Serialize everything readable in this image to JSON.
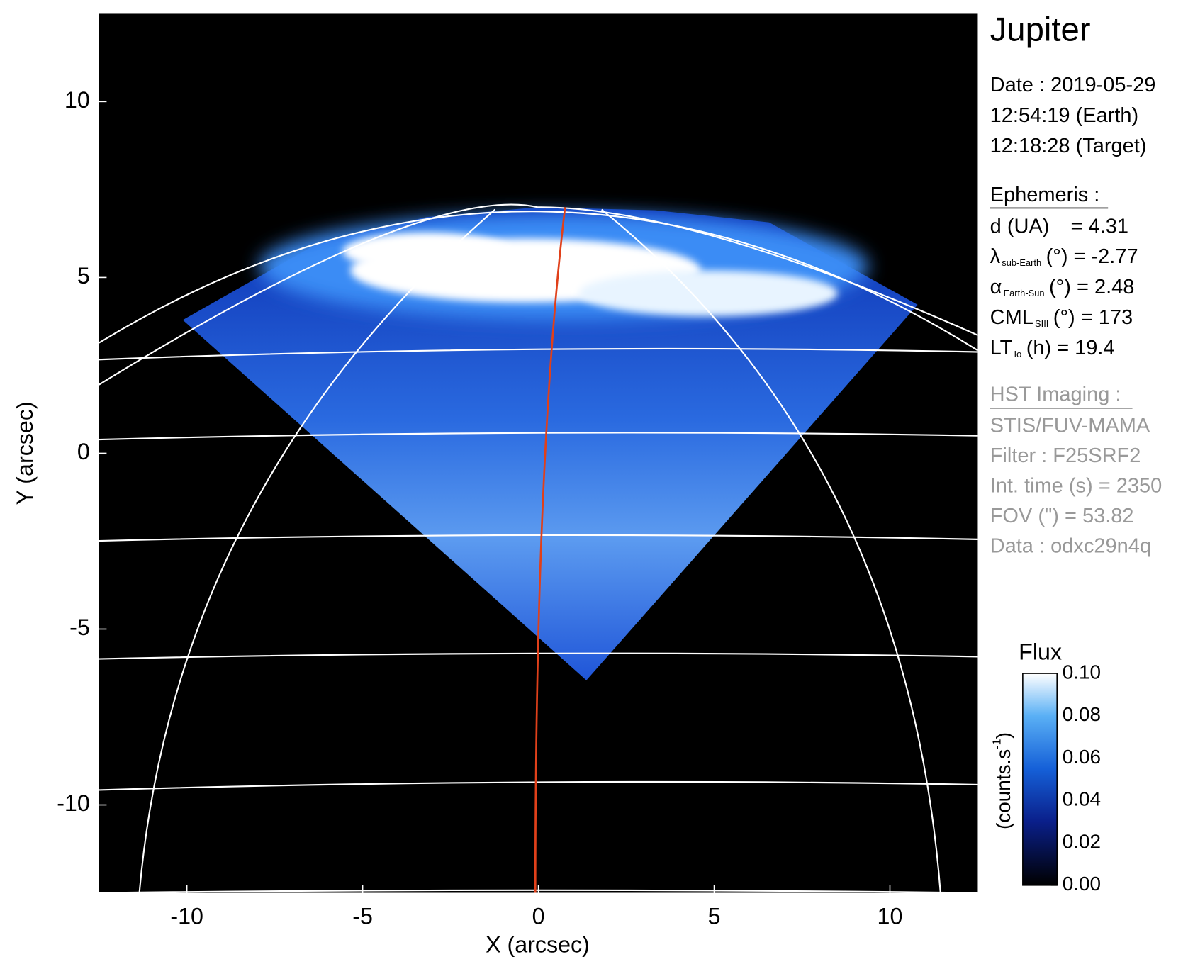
{
  "chart_data": {
    "type": "image",
    "xlabel": "X (arcsec)",
    "ylabel": "Y (arcsec)",
    "xlim": [
      -12.5,
      12.5
    ],
    "ylim": [
      -12.5,
      12.5
    ],
    "xticks": [
      -10,
      -5,
      0,
      5,
      10
    ],
    "yticks": [
      -10,
      -5,
      0,
      5,
      10
    ],
    "colorbar": {
      "title": "Flux",
      "label": "(counts.s",
      "label_sup": "-1",
      "label_end": ")",
      "lim": [
        0,
        0.1
      ],
      "ticks": [
        {
          "value": 0,
          "label": "0.00"
        },
        0.02,
        0.04,
        0.06,
        0.08,
        {
          "value": 0.1,
          "label": "0.10"
        }
      ]
    }
  },
  "info": {
    "title": "Jupiter",
    "date": [
      "Date : 2019-05-29",
      "12:54:19 (Earth)",
      "12:18:28 (Target)"
    ],
    "ephemeris": {
      "heading": "Ephemeris :",
      "items": [
        {
          "name": "d (UA)",
          "rest": "= 4.31"
        },
        {
          "name": "λ",
          "sub": "sub-Earth",
          "rest": "(°) = -2.77"
        },
        {
          "name": "α",
          "sub": "Earth-Sun",
          "rest": "(°) = 2.48"
        },
        {
          "name": "CML",
          "sub": "SIII",
          "rest": "(°) = 173"
        },
        {
          "name": "LT",
          "sub": "Io",
          "rest": "(h) = 19.4"
        }
      ]
    },
    "hst": {
      "heading": "HST Imaging :",
      "lines": [
        "STIS/FUV-MAMA",
        "Filter : F25SRF2",
        "Int. time (s) = 2350",
        "FOV (\") = 53.82",
        "Data : odxc29n4q"
      ]
    }
  }
}
